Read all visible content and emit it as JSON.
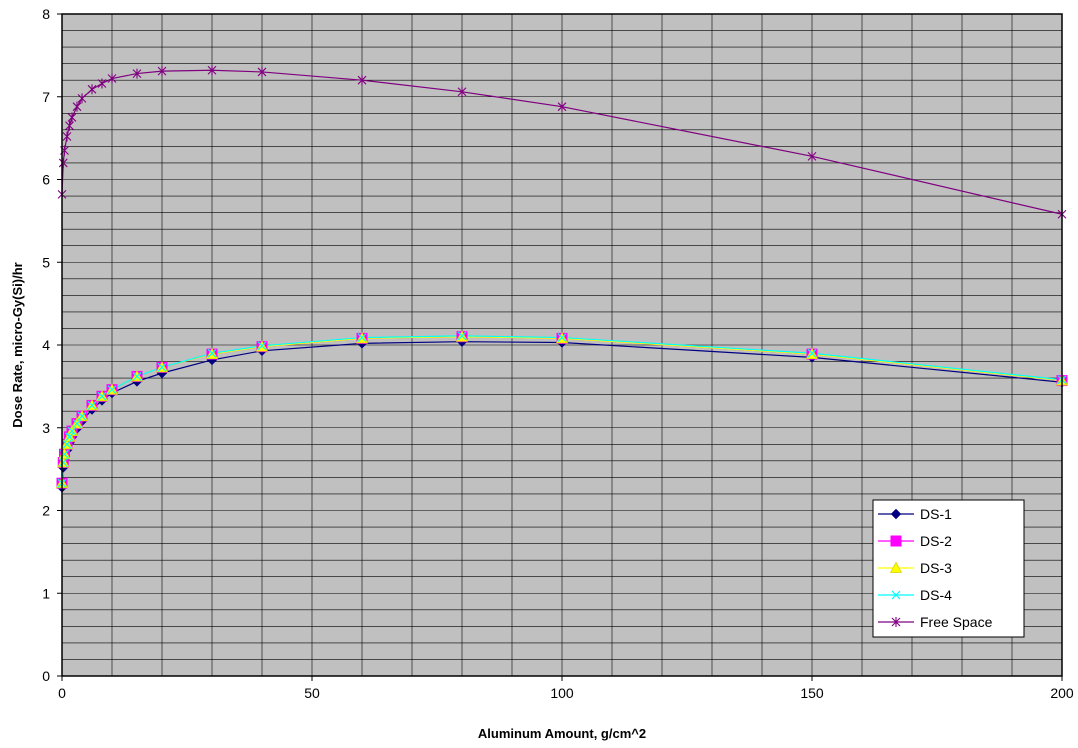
{
  "chart_data": {
    "type": "line",
    "title": "",
    "xlabel": "Aluminum Amount, g/cm^2",
    "ylabel": "Dose Rate, micro-Gy(Si)/hr",
    "xlim": [
      0,
      200
    ],
    "ylim": [
      0,
      8
    ],
    "x_ticks": [
      0,
      50,
      100,
      150,
      200
    ],
    "y_ticks": [
      0,
      1,
      2,
      3,
      4,
      5,
      6,
      7,
      8
    ],
    "x_minor_step": 10,
    "y_minor_step": 0.2,
    "grid": true,
    "plot_background": "#c0c0c0",
    "legend_position": "bottom-right",
    "x_tick_labels": [
      "0",
      "50",
      "100",
      "150",
      "200"
    ],
    "y_tick_labels": [
      "0",
      "1",
      "2",
      "3",
      "4",
      "5",
      "6",
      "7",
      "8"
    ],
    "series": [
      {
        "name": "DS-1",
        "color": "#000080",
        "marker": "diamond",
        "marker_fill": "#000080",
        "x": [
          0,
          0.25,
          0.5,
          1,
          1.5,
          2,
          3,
          4,
          6,
          8,
          10,
          15,
          20,
          30,
          40,
          60,
          80,
          100,
          150,
          200
        ],
        "y": [
          2.28,
          2.52,
          2.62,
          2.73,
          2.82,
          2.89,
          2.99,
          3.08,
          3.22,
          3.33,
          3.42,
          3.56,
          3.66,
          3.82,
          3.93,
          4.02,
          4.04,
          4.03,
          3.85,
          3.55
        ]
      },
      {
        "name": "DS-2",
        "color": "#ff00ff",
        "marker": "square",
        "marker_fill": "#ff00ff",
        "x": [
          0,
          0.25,
          0.5,
          1,
          1.5,
          2,
          3,
          4,
          6,
          8,
          10,
          15,
          20,
          30,
          40,
          60,
          80,
          100,
          150,
          200
        ],
        "y": [
          2.33,
          2.58,
          2.68,
          2.8,
          2.89,
          2.96,
          3.05,
          3.14,
          3.27,
          3.38,
          3.46,
          3.62,
          3.73,
          3.89,
          3.98,
          4.08,
          4.1,
          4.08,
          3.89,
          3.57
        ]
      },
      {
        "name": "DS-3",
        "color": "#ffff00",
        "marker": "triangle",
        "marker_fill": "#ffff00",
        "x": [
          0,
          0.25,
          0.5,
          1,
          1.5,
          2,
          3,
          4,
          6,
          8,
          10,
          15,
          20,
          30,
          40,
          60,
          80,
          100,
          150,
          200
        ],
        "y": [
          2.33,
          2.58,
          2.68,
          2.8,
          2.89,
          2.96,
          3.05,
          3.14,
          3.27,
          3.38,
          3.46,
          3.62,
          3.73,
          3.89,
          3.98,
          4.08,
          4.1,
          4.08,
          3.89,
          3.57
        ]
      },
      {
        "name": "DS-4",
        "color": "#00ffff",
        "marker": "x",
        "marker_fill": "none",
        "x": [
          0,
          0.25,
          0.5,
          1,
          1.5,
          2,
          3,
          4,
          6,
          8,
          10,
          15,
          20,
          30,
          40,
          60,
          80,
          100,
          150,
          200
        ],
        "y": [
          2.33,
          2.58,
          2.68,
          2.8,
          2.89,
          2.96,
          3.05,
          3.14,
          3.27,
          3.38,
          3.46,
          3.62,
          3.73,
          3.9,
          3.99,
          4.09,
          4.11,
          4.09,
          3.9,
          3.58
        ]
      },
      {
        "name": "Free Space",
        "color": "#800080",
        "marker": "asterisk",
        "marker_fill": "none",
        "x": [
          0,
          0.25,
          0.5,
          1,
          1.5,
          2,
          3,
          4,
          6,
          8,
          10,
          15,
          20,
          30,
          40,
          60,
          80,
          100,
          150,
          200
        ],
        "y": [
          5.82,
          6.2,
          6.35,
          6.52,
          6.65,
          6.75,
          6.88,
          6.98,
          7.09,
          7.16,
          7.22,
          7.28,
          7.31,
          7.32,
          7.3,
          7.2,
          7.06,
          6.88,
          6.28,
          5.58
        ]
      }
    ]
  }
}
